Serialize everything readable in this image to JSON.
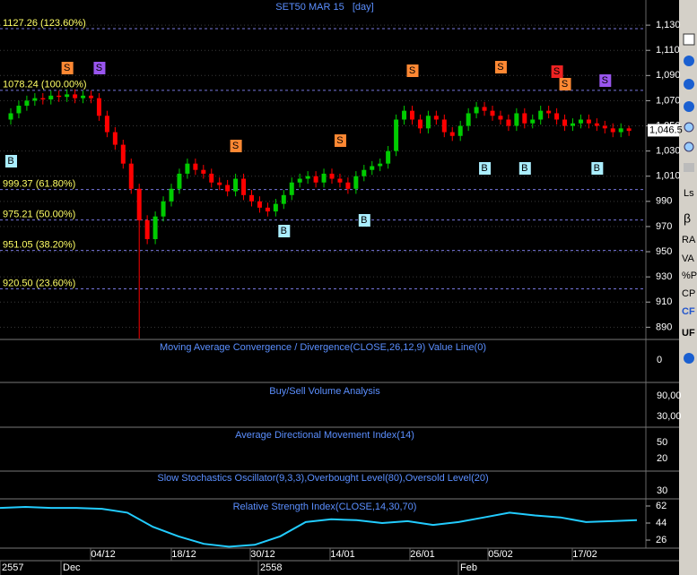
{
  "title": "SET50 MAR 15   [day]",
  "toolbar": [
    "Ls",
    "β",
    "RA",
    "VA",
    "%P",
    "CP",
    "CF",
    "UF"
  ],
  "time_axis": {
    "dates": [
      "04/12",
      "18/12",
      "30/12",
      "14/01",
      "26/01",
      "05/02",
      "17/02"
    ],
    "periods": [
      "2557",
      "Dec",
      "2558",
      "Feb"
    ]
  },
  "signal_labels": {
    "sell": "S",
    "buy": "B"
  },
  "chart_data": [
    {
      "type": "candlestick",
      "open": [
        1055,
        1060,
        1066,
        1070,
        1072,
        1071,
        1074,
        1073,
        1075,
        1072,
        1074,
        1072,
        1058,
        1045,
        1035,
        1020,
        1000,
        975,
        960,
        978,
        990,
        1000,
        1012,
        1020,
        1015,
        1012,
        1005,
        1003,
        998,
        1008,
        995,
        990,
        985,
        982,
        988,
        995,
        1005,
        1008,
        1010,
        1005,
        1012,
        1008,
        1005,
        1000,
        1010,
        1015,
        1018,
        1020,
        1030,
        1055,
        1062,
        1055,
        1048,
        1058,
        1055,
        1045,
        1042,
        1050,
        1060,
        1065,
        1062,
        1058,
        1055,
        1050,
        1060,
        1052,
        1055,
        1062,
        1060,
        1055,
        1050,
        1052,
        1055,
        1052,
        1050,
        1048,
        1045,
        1048
      ],
      "high": [
        1064,
        1070,
        1074,
        1076,
        1076,
        1078,
        1078,
        1079,
        1079,
        1078,
        1078,
        1076,
        1062,
        1049,
        1039,
        1024,
        1004,
        979,
        982,
        994,
        1004,
        1016,
        1024,
        1024,
        1019,
        1016,
        1009,
        1007,
        1012,
        1012,
        999,
        994,
        989,
        992,
        999,
        1009,
        1012,
        1014,
        1014,
        1016,
        1016,
        1012,
        1009,
        1014,
        1019,
        1022,
        1024,
        1034,
        1059,
        1066,
        1066,
        1059,
        1062,
        1062,
        1059,
        1049,
        1054,
        1064,
        1069,
        1069,
        1066,
        1062,
        1059,
        1064,
        1064,
        1059,
        1066,
        1066,
        1064,
        1059,
        1056,
        1059,
        1059,
        1056,
        1054,
        1052,
        1052,
        1050
      ],
      "low": [
        1051,
        1056,
        1062,
        1066,
        1067,
        1067,
        1069,
        1069,
        1068,
        1068,
        1068,
        1054,
        1041,
        1031,
        1016,
        996,
        881,
        956,
        956,
        974,
        986,
        996,
        1008,
        1011,
        1008,
        1001,
        999,
        994,
        994,
        991,
        986,
        981,
        978,
        978,
        984,
        991,
        1001,
        1004,
        1001,
        1001,
        1004,
        1001,
        996,
        996,
        1006,
        1011,
        1014,
        1016,
        1026,
        1051,
        1051,
        1044,
        1044,
        1051,
        1041,
        1038,
        1038,
        1046,
        1056,
        1058,
        1054,
        1051,
        1046,
        1046,
        1048,
        1048,
        1051,
        1056,
        1051,
        1046,
        1046,
        1048,
        1048,
        1046,
        1044,
        1041,
        1041,
        1042
      ],
      "close": [
        1060,
        1066,
        1070,
        1072,
        1071,
        1074,
        1073,
        1075,
        1072,
        1074,
        1072,
        1058,
        1045,
        1035,
        1020,
        1000,
        975,
        960,
        978,
        990,
        1000,
        1012,
        1020,
        1015,
        1012,
        1005,
        1003,
        998,
        1008,
        995,
        990,
        985,
        982,
        988,
        995,
        1005,
        1008,
        1010,
        1005,
        1012,
        1008,
        1005,
        1000,
        1010,
        1015,
        1018,
        1020,
        1030,
        1055,
        1062,
        1055,
        1048,
        1058,
        1055,
        1045,
        1042,
        1050,
        1060,
        1065,
        1062,
        1058,
        1055,
        1050,
        1060,
        1052,
        1055,
        1062,
        1060,
        1055,
        1050,
        1052,
        1055,
        1052,
        1050,
        1048,
        1045,
        1048,
        1046
      ],
      "up_color": "#00cc00",
      "down_color": "#ff0000",
      "ylim": [
        881,
        1150
      ],
      "yticks": [
        {
          "value": 1130,
          "label": "1,130"
        },
        {
          "value": 1110,
          "label": "1,110"
        },
        {
          "value": 1090,
          "label": "1,090"
        },
        {
          "value": 1070,
          "label": "1,070"
        },
        {
          "value": 1050,
          "label": "1,050"
        },
        {
          "value": 1030,
          "label": "1,030"
        },
        {
          "value": 1010,
          "label": "1,010"
        },
        990,
        970,
        950,
        930,
        910,
        890
      ],
      "fib_levels": [
        {
          "value": 1127.26,
          "label": "1127.26 (123.60%)"
        },
        {
          "value": 1078.24,
          "label": "1078.24 (100.00%)"
        },
        {
          "value": 999.37,
          "label": "999.37 (61.80%)"
        },
        {
          "value": 975.21,
          "label": "975.21 (50.00%)"
        },
        {
          "value": 951.05,
          "label": "951.05 (38.20%)"
        },
        {
          "value": 920.5,
          "label": "920.50 (23.60%)"
        }
      ],
      "last_price": {
        "value": 1046.5,
        "label": "1,046.5"
      }
    },
    {
      "type": "indicator",
      "title": "Moving Average Convergence / Divergence(CLOSE,26,12,9) Value Line(0)",
      "tick_labels": [
        "0"
      ]
    },
    {
      "type": "indicator",
      "title": "Buy/Sell Volume Analysis",
      "tick_labels": [
        "90,00",
        "30,00"
      ]
    },
    {
      "type": "indicator",
      "title": "Average Directional Movement Index(14)",
      "tick_labels": [
        "50",
        "20"
      ]
    },
    {
      "type": "indicator",
      "title": "Slow Stochastics Oscillator(9,3,3),Overbought Level(80),Oversold Level(20)",
      "tick_labels": [
        "30"
      ]
    },
    {
      "type": "line",
      "title": "Relative Strength Index(CLOSE,14,30,70)",
      "color": "#22ccff",
      "values": [
        60,
        61,
        60,
        60,
        59,
        55,
        40,
        30,
        22,
        19,
        21,
        30,
        45,
        48,
        47,
        44,
        46,
        42,
        45,
        50,
        55,
        52,
        50,
        45,
        46,
        47
      ],
      "ylim": [
        17.5,
        68.6
      ],
      "yticks": [
        62,
        44,
        26
      ]
    }
  ]
}
